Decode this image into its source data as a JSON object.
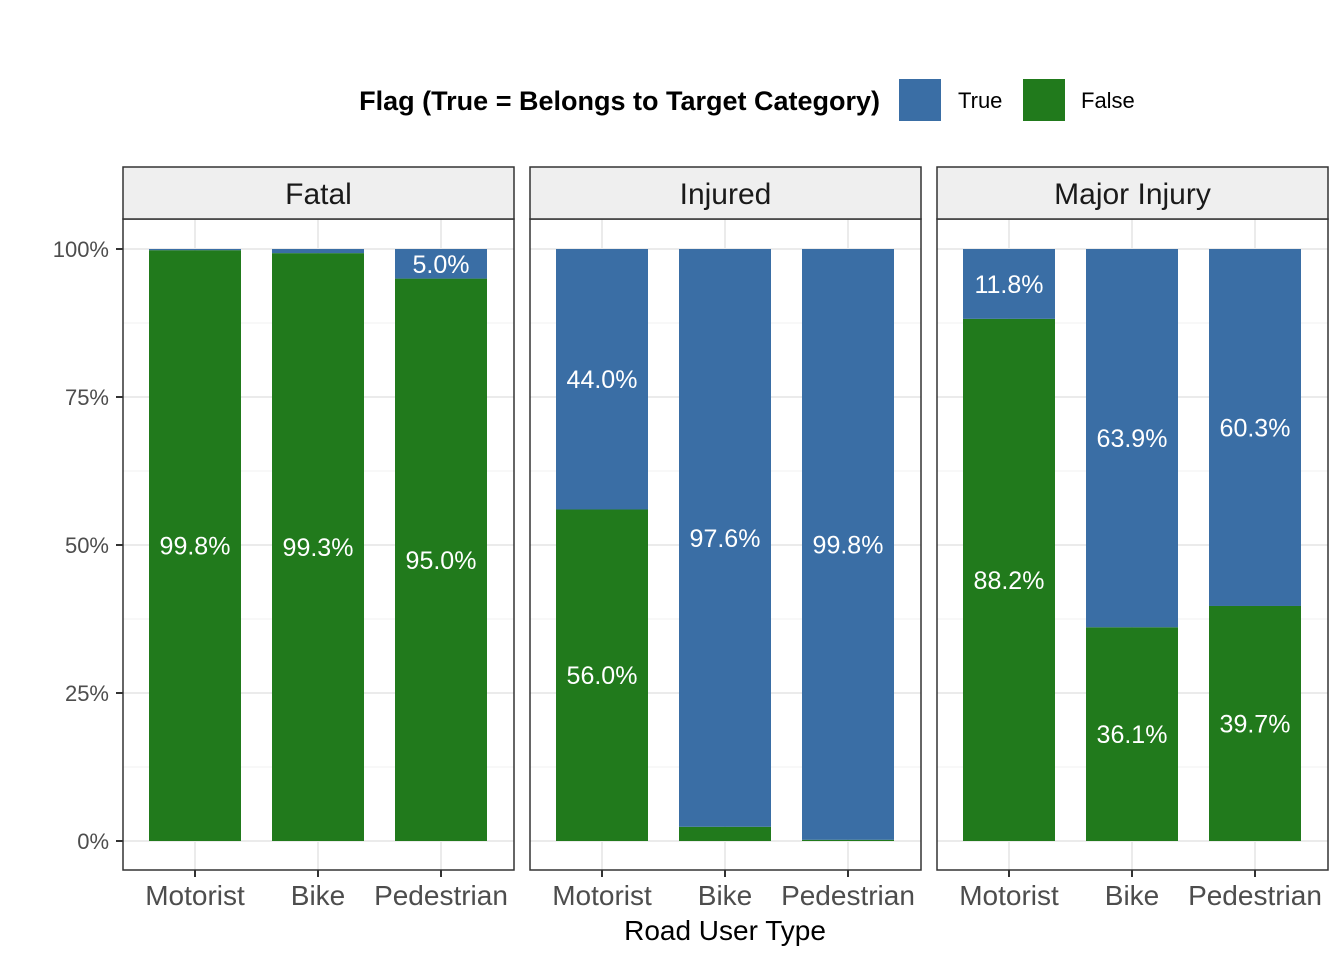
{
  "chart_data": {
    "type": "bar",
    "stacked": true,
    "title": "",
    "xlabel": "Road User Type",
    "ylabel": "",
    "ylim": [
      0,
      100
    ],
    "y_ticks": [
      "0%",
      "25%",
      "50%",
      "75%",
      "100%"
    ],
    "categories": [
      "Motorist",
      "Bike",
      "Pedestrian"
    ],
    "legend": {
      "title": "Flag (True = Belongs to Target Category)",
      "position": "top",
      "entries": [
        {
          "label": "True",
          "color": "#3A6EA5"
        },
        {
          "label": "False",
          "color": "#217A1C"
        }
      ]
    },
    "grid": true,
    "facets": [
      {
        "name": "Fatal",
        "true_values": [
          0.2,
          0.7,
          5.0
        ],
        "false_values": [
          99.8,
          99.3,
          95.0
        ],
        "true_labels": [
          "",
          "",
          "5.0%"
        ],
        "false_labels": [
          "99.8%",
          "99.3%",
          "95.0%"
        ]
      },
      {
        "name": "Injured",
        "true_values": [
          44.0,
          97.6,
          99.8
        ],
        "false_values": [
          56.0,
          2.4,
          0.2
        ],
        "true_labels": [
          "44.0%",
          "97.6%",
          "99.8%"
        ],
        "false_labels": [
          "56.0%",
          "",
          ""
        ]
      },
      {
        "name": "Major Injury",
        "true_values": [
          11.8,
          63.9,
          60.3
        ],
        "false_values": [
          88.2,
          36.1,
          39.7
        ],
        "true_labels": [
          "11.8%",
          "63.9%",
          "60.3%"
        ],
        "false_labels": [
          "88.2%",
          "36.1%",
          "39.7%"
        ]
      }
    ]
  }
}
